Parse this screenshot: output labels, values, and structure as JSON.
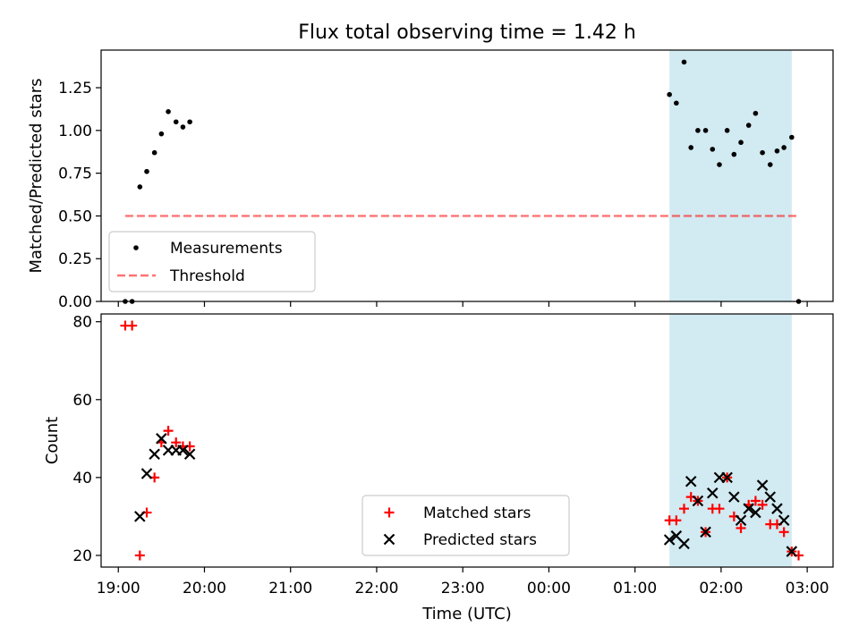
{
  "figure": {
    "title": "Flux total observing time = 1.42 h",
    "xlabel": "Time (UTC)",
    "x_ticks": [
      "19:00",
      "20:00",
      "21:00",
      "22:00",
      "23:00",
      "00:00",
      "01:00",
      "02:00",
      "03:00"
    ],
    "colors": {
      "shade": "#add8e6",
      "threshold": "#ff0000",
      "matched": "#ff0000",
      "predicted": "#000000",
      "measurements": "#000000"
    }
  },
  "chart_data": [
    {
      "type": "scatter",
      "ylabel": "Matched/Predicted stars",
      "xlim": [
        -0.2,
        8.3
      ],
      "ylim": [
        0,
        1.47
      ],
      "y_ticks": [
        0.0,
        0.25,
        0.5,
        0.75,
        1.0,
        1.25
      ],
      "y_tick_labels": [
        "0.00",
        "0.25",
        "0.50",
        "0.75",
        "1.00",
        "1.25"
      ],
      "shaded_region": [
        6.4,
        7.82
      ],
      "legend": {
        "position": "lower-left",
        "entries": [
          "Measurements",
          "Threshold"
        ]
      },
      "threshold": {
        "name": "Threshold",
        "value": 0.5,
        "x_range": [
          0.08,
          7.88
        ]
      },
      "series": [
        {
          "name": "Measurements",
          "x": [
            0.08,
            0.16,
            0.25,
            0.33,
            0.42,
            0.5,
            0.58,
            0.67,
            0.75,
            0.83,
            6.4,
            6.48,
            6.57,
            6.65,
            6.73,
            6.82,
            6.9,
            6.98,
            7.07,
            7.15,
            7.23,
            7.32,
            7.4,
            7.48,
            7.57,
            7.65,
            7.73,
            7.82,
            7.9
          ],
          "y": [
            0.0,
            0.0,
            0.67,
            0.76,
            0.87,
            0.98,
            1.11,
            1.05,
            1.02,
            1.05,
            1.21,
            1.16,
            1.4,
            0.9,
            1.0,
            1.0,
            0.89,
            0.8,
            1.0,
            0.86,
            0.93,
            1.03,
            1.1,
            0.87,
            0.8,
            0.88,
            0.9,
            0.96,
            0.0
          ]
        }
      ]
    },
    {
      "type": "scatter",
      "ylabel": "Count",
      "xlim": [
        -0.2,
        8.3
      ],
      "ylim": [
        17,
        82
      ],
      "y_ticks": [
        20,
        40,
        60,
        80
      ],
      "y_tick_labels": [
        "20",
        "40",
        "60",
        "80"
      ],
      "shaded_region": [
        6.4,
        7.82
      ],
      "legend": {
        "position": "lower-center",
        "entries": [
          "Matched stars",
          "Predicted stars"
        ]
      },
      "series": [
        {
          "name": "Matched stars",
          "marker": "+",
          "x": [
            0.08,
            0.16,
            0.25,
            0.33,
            0.42,
            0.5,
            0.58,
            0.67,
            0.75,
            0.83,
            6.4,
            6.48,
            6.57,
            6.65,
            6.73,
            6.82,
            6.9,
            6.98,
            7.07,
            7.15,
            7.23,
            7.32,
            7.4,
            7.48,
            7.57,
            7.65,
            7.73,
            7.82,
            7.9
          ],
          "y": [
            79,
            79,
            20,
            31,
            40,
            49,
            52,
            49,
            48,
            48,
            29,
            29,
            32,
            35,
            34,
            26,
            32,
            32,
            40,
            30,
            27,
            33,
            34,
            33,
            28,
            28,
            26,
            21,
            20
          ]
        },
        {
          "name": "Predicted stars",
          "marker": "x",
          "x": [
            0.25,
            0.33,
            0.42,
            0.5,
            0.58,
            0.67,
            0.75,
            0.83,
            6.4,
            6.48,
            6.57,
            6.65,
            6.73,
            6.82,
            6.9,
            6.98,
            7.07,
            7.15,
            7.23,
            7.32,
            7.4,
            7.48,
            7.57,
            7.65,
            7.73,
            7.82
          ],
          "y": [
            30,
            41,
            46,
            50,
            47,
            47,
            47,
            46,
            24,
            25,
            23,
            39,
            34,
            26,
            36,
            40,
            40,
            35,
            29,
            32,
            31,
            38,
            35,
            32,
            29,
            21
          ]
        }
      ]
    }
  ]
}
